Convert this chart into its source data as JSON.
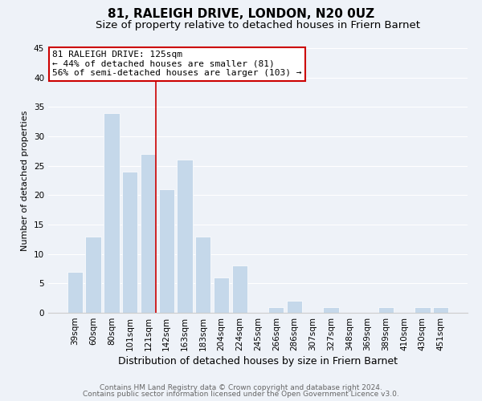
{
  "title": "81, RALEIGH DRIVE, LONDON, N20 0UZ",
  "subtitle": "Size of property relative to detached houses in Friern Barnet",
  "xlabel": "Distribution of detached houses by size in Friern Barnet",
  "ylabel": "Number of detached properties",
  "bar_labels": [
    "39sqm",
    "60sqm",
    "80sqm",
    "101sqm",
    "121sqm",
    "142sqm",
    "163sqm",
    "183sqm",
    "204sqm",
    "224sqm",
    "245sqm",
    "266sqm",
    "286sqm",
    "307sqm",
    "327sqm",
    "348sqm",
    "369sqm",
    "389sqm",
    "410sqm",
    "430sqm",
    "451sqm"
  ],
  "bar_values": [
    7,
    13,
    34,
    24,
    27,
    21,
    26,
    13,
    6,
    8,
    0,
    1,
    2,
    0,
    1,
    0,
    0,
    1,
    0,
    1,
    1
  ],
  "bar_color": "#c5d8ea",
  "vline_color": "#cc0000",
  "vline_bar_index": 4,
  "ylim": [
    0,
    45
  ],
  "yticks": [
    0,
    5,
    10,
    15,
    20,
    25,
    30,
    35,
    40,
    45
  ],
  "annotation_title": "81 RALEIGH DRIVE: 125sqm",
  "annotation_line1": "← 44% of detached houses are smaller (81)",
  "annotation_line2": "56% of semi-detached houses are larger (103) →",
  "annotation_box_facecolor": "#ffffff",
  "annotation_box_edgecolor": "#cc0000",
  "footer1": "Contains HM Land Registry data © Crown copyright and database right 2024.",
  "footer2": "Contains public sector information licensed under the Open Government Licence v3.0.",
  "background_color": "#eef2f8",
  "grid_color": "#ffffff",
  "title_fontsize": 11,
  "subtitle_fontsize": 9.5,
  "xlabel_fontsize": 9,
  "ylabel_fontsize": 8,
  "tick_fontsize": 7.5,
  "annotation_fontsize": 8,
  "footer_fontsize": 6.5
}
